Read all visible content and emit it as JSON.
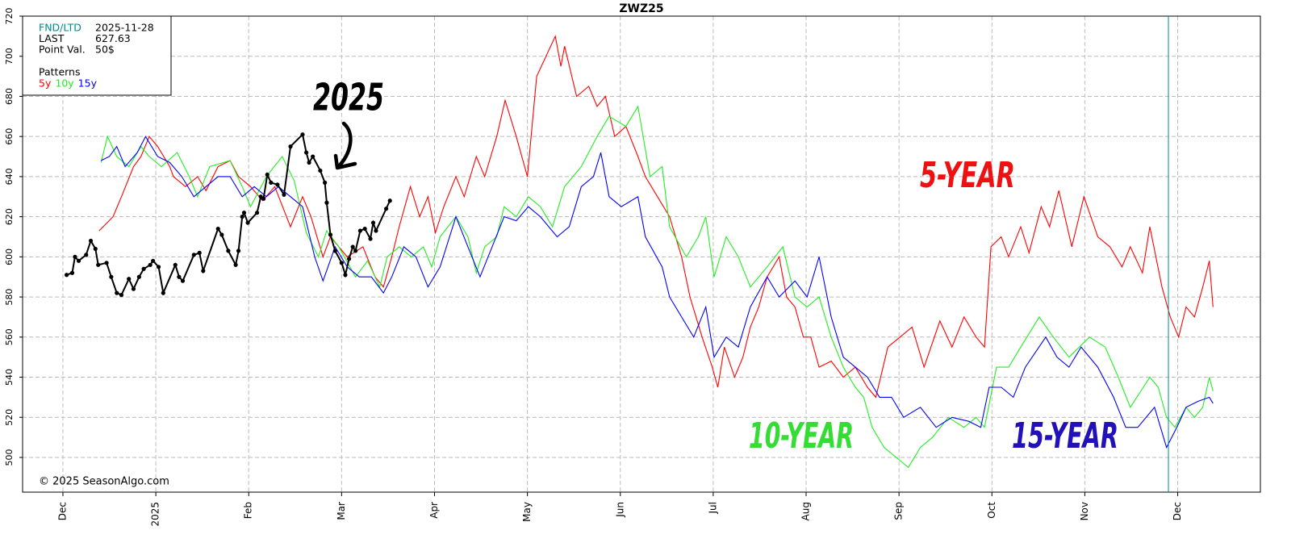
{
  "chart_data": {
    "type": "line",
    "title": "ZWZ25",
    "xlim": [
      -0.434,
      12.89
    ],
    "xticks": [
      {
        "value": 0,
        "label": "Dec"
      },
      {
        "value": 1,
        "label": "2025"
      },
      {
        "value": 2,
        "label": "Feb"
      },
      {
        "value": 3,
        "label": "Mar"
      },
      {
        "value": 4,
        "label": "Apr"
      },
      {
        "value": 5,
        "label": "May"
      },
      {
        "value": 6,
        "label": "Jun"
      },
      {
        "value": 7,
        "label": "Jul"
      },
      {
        "value": 8,
        "label": "Aug"
      },
      {
        "value": 9,
        "label": "Sep"
      },
      {
        "value": 10,
        "label": "Oct"
      },
      {
        "value": 11,
        "label": "Nov"
      },
      {
        "value": 12,
        "label": "Dec"
      }
    ],
    "ylim": [
      482.7,
      720
    ],
    "yticks": [
      500,
      520,
      540,
      560,
      580,
      600,
      620,
      640,
      660,
      680,
      700,
      720
    ],
    "grid": true,
    "fnd_line": {
      "x": 11.9,
      "color": "#008b8b"
    },
    "info": [
      {
        "label": "FND/LTD",
        "value": "2025-11-28",
        "color": "#008b8b"
      },
      {
        "label": "LAST",
        "value": "627.63",
        "color": "#000000"
      },
      {
        "label": "Point Val.",
        "value": "50$",
        "color": "#000000"
      }
    ],
    "patterns_label": "Patterns",
    "copyright": "© 2025 SeasonAlgo.com",
    "annotations": [
      {
        "text": "5-YEAR",
        "color": "#ee1111"
      },
      {
        "text": "10-YEAR",
        "color": "#33dd33"
      },
      {
        "text": "15-YEAR",
        "color": "#2211bb"
      }
    ],
    "series": [
      {
        "name": "5y",
        "color": "#ff0000",
        "legend": true,
        "x": [
          0.39,
          0.54,
          0.63,
          0.76,
          0.84,
          0.93,
          1.02,
          1.15,
          1.19,
          1.32,
          1.45,
          1.54,
          1.67,
          1.8,
          1.89,
          2.02,
          2.15,
          2.28,
          2.45,
          2.58,
          2.67,
          2.8,
          2.88,
          3.06,
          3.23,
          3.36,
          3.45,
          3.54,
          3.62,
          3.74,
          3.84,
          3.93,
          4.01,
          4.1,
          4.23,
          4.32,
          4.45,
          4.54,
          4.67,
          4.76,
          4.88,
          5.0,
          5.1,
          5.3,
          5.36,
          5.4,
          5.53,
          5.66,
          5.75,
          5.84,
          5.94,
          6.06,
          6.19,
          6.27,
          6.4,
          6.53,
          6.66,
          6.75,
          6.88,
          6.99,
          7.05,
          7.12,
          7.23,
          7.32,
          7.4,
          7.49,
          7.58,
          7.71,
          7.79,
          7.88,
          7.97,
          8.05,
          8.14,
          8.27,
          8.4,
          8.53,
          8.66,
          8.75,
          8.88,
          9.01,
          9.14,
          9.27,
          9.44,
          9.57,
          9.7,
          9.83,
          9.92,
          9.99,
          10.1,
          10.18,
          10.31,
          10.4,
          10.53,
          10.62,
          10.72,
          10.86,
          10.99,
          11.14,
          11.27,
          11.4,
          11.49,
          11.62,
          11.7,
          11.83,
          11.92,
          12.01,
          12.09,
          12.18,
          12.27,
          12.34,
          12.38
        ],
        "values": [
          613,
          620,
          630,
          645,
          650,
          660,
          655,
          645,
          640,
          635,
          640,
          633,
          645,
          648,
          640,
          635,
          628,
          635,
          615,
          630,
          620,
          600,
          610,
          600,
          605,
          590,
          585,
          600,
          615,
          635,
          620,
          630,
          612,
          625,
          640,
          630,
          650,
          640,
          660,
          678,
          660,
          640,
          690,
          710,
          695,
          705,
          680,
          685,
          675,
          680,
          660,
          665,
          650,
          640,
          630,
          620,
          600,
          580,
          560,
          545,
          535,
          555,
          540,
          550,
          565,
          575,
          590,
          600,
          580,
          575,
          560,
          560,
          545,
          548,
          540,
          545,
          535,
          530,
          555,
          560,
          565,
          545,
          568,
          555,
          570,
          560,
          555,
          605,
          610,
          600,
          615,
          602,
          625,
          615,
          633,
          605,
          630,
          610,
          605,
          595,
          605,
          592,
          615,
          585,
          570,
          560,
          575,
          570,
          585,
          598,
          575
        ]
      },
      {
        "name": "10y",
        "color": "#22ee22",
        "legend": true,
        "x": [
          0.41,
          0.48,
          0.58,
          0.71,
          0.84,
          0.93,
          1.06,
          1.23,
          1.36,
          1.45,
          1.58,
          1.8,
          1.93,
          2.02,
          2.19,
          2.36,
          2.49,
          2.62,
          2.75,
          2.84,
          2.97,
          3.15,
          3.28,
          3.41,
          3.49,
          3.62,
          3.75,
          3.88,
          3.97,
          4.06,
          4.23,
          4.36,
          4.45,
          4.54,
          4.67,
          4.75,
          4.88,
          5.01,
          5.14,
          5.27,
          5.4,
          5.58,
          5.75,
          5.88,
          6.06,
          6.19,
          6.32,
          6.45,
          6.53,
          6.71,
          6.84,
          6.92,
          7.01,
          7.14,
          7.27,
          7.4,
          7.58,
          7.75,
          7.88,
          8.01,
          8.14,
          8.27,
          8.4,
          8.53,
          8.62,
          8.71,
          8.84,
          8.97,
          9.1,
          9.23,
          9.36,
          9.53,
          9.7,
          9.83,
          9.92,
          10.05,
          10.18,
          10.31,
          10.51,
          10.66,
          10.83,
          11.05,
          11.22,
          11.36,
          11.49,
          11.7,
          11.79,
          11.88,
          11.97,
          12.09,
          12.18,
          12.27,
          12.34,
          12.38
        ],
        "values": [
          647,
          660,
          650,
          645,
          655,
          650,
          645,
          652,
          640,
          630,
          645,
          648,
          635,
          625,
          640,
          650,
          638,
          612,
          600,
          613,
          605,
          590,
          598,
          585,
          600,
          605,
          600,
          605,
          595,
          610,
          620,
          610,
          592,
          605,
          610,
          625,
          620,
          630,
          625,
          615,
          635,
          645,
          660,
          670,
          665,
          675,
          640,
          645,
          615,
          600,
          610,
          620,
          590,
          610,
          600,
          585,
          595,
          605,
          580,
          575,
          580,
          560,
          545,
          535,
          530,
          515,
          505,
          500,
          495,
          505,
          510,
          520,
          515,
          520,
          515,
          545,
          545,
          555,
          570,
          560,
          550,
          560,
          555,
          540,
          525,
          540,
          535,
          520,
          515,
          525,
          520,
          525,
          540,
          533
        ]
      },
      {
        "name": "15y",
        "color": "#0000ff",
        "legend": true,
        "x": [
          0.41,
          0.5,
          0.58,
          0.67,
          0.8,
          0.89,
          1.02,
          1.15,
          1.28,
          1.41,
          1.54,
          1.67,
          1.8,
          1.93,
          2.06,
          2.19,
          2.32,
          2.45,
          2.58,
          2.71,
          2.8,
          2.93,
          3.06,
          3.19,
          3.32,
          3.45,
          3.54,
          3.67,
          3.8,
          3.93,
          4.06,
          4.23,
          4.36,
          4.49,
          4.62,
          4.75,
          4.88,
          5.01,
          5.14,
          5.32,
          5.45,
          5.58,
          5.71,
          5.79,
          5.88,
          6.01,
          6.19,
          6.27,
          6.45,
          6.53,
          6.66,
          6.79,
          6.92,
          7.01,
          7.14,
          7.27,
          7.4,
          7.58,
          7.71,
          7.88,
          8.01,
          8.14,
          8.27,
          8.4,
          8.53,
          8.66,
          8.79,
          8.92,
          9.05,
          9.23,
          9.4,
          9.57,
          9.75,
          9.88,
          9.97,
          10.1,
          10.23,
          10.36,
          10.58,
          10.7,
          10.83,
          10.96,
          11.14,
          11.31,
          11.44,
          11.57,
          11.75,
          11.88,
          11.99,
          12.09,
          12.22,
          12.34,
          12.38
        ],
        "values": [
          648,
          650,
          655,
          645,
          652,
          660,
          650,
          647,
          640,
          630,
          635,
          640,
          640,
          630,
          635,
          630,
          635,
          630,
          625,
          600,
          588,
          605,
          595,
          590,
          590,
          582,
          590,
          605,
          600,
          585,
          595,
          620,
          605,
          590,
          605,
          620,
          618,
          625,
          620,
          610,
          615,
          635,
          640,
          652,
          630,
          625,
          630,
          610,
          595,
          580,
          570,
          560,
          575,
          550,
          560,
          555,
          575,
          590,
          580,
          588,
          580,
          600,
          570,
          550,
          545,
          540,
          530,
          530,
          520,
          525,
          515,
          520,
          518,
          515,
          535,
          535,
          530,
          545,
          560,
          550,
          545,
          555,
          545,
          530,
          515,
          515,
          525,
          505,
          515,
          525,
          528,
          530,
          527
        ]
      },
      {
        "name": "2025",
        "color": "#000000",
        "legend": false,
        "markers": true,
        "x": [
          0.04,
          0.1,
          0.13,
          0.17,
          0.25,
          0.3,
          0.35,
          0.38,
          0.47,
          0.52,
          0.58,
          0.63,
          0.71,
          0.76,
          0.82,
          0.87,
          0.94,
          0.97,
          1.03,
          1.08,
          1.21,
          1.25,
          1.29,
          1.41,
          1.47,
          1.51,
          1.67,
          1.71,
          1.78,
          1.86,
          1.89,
          1.93,
          1.95,
          1.99,
          2.09,
          2.13,
          2.16,
          2.2,
          2.24,
          2.31,
          2.38,
          2.45,
          2.58,
          2.62,
          2.65,
          2.69,
          2.77,
          2.82,
          2.84,
          2.88,
          2.93,
          3.0,
          3.04,
          3.08,
          3.12,
          3.15,
          3.2,
          3.25,
          3.31,
          3.34,
          3.37,
          3.48,
          3.52
        ],
        "values": [
          591,
          592,
          600,
          598,
          601,
          608,
          604,
          596,
          597,
          590,
          582,
          581,
          589,
          584,
          590,
          594,
          596,
          598,
          595,
          582,
          596,
          590,
          588,
          601,
          602,
          593,
          614,
          611,
          603,
          596,
          603,
          620,
          622,
          617,
          622,
          630,
          629,
          641,
          637,
          636,
          631,
          655,
          661,
          652,
          647,
          650,
          643,
          637,
          627,
          611,
          603,
          597,
          591,
          599,
          605,
          603,
          613,
          614,
          609,
          617,
          613,
          624,
          628
        ]
      }
    ]
  }
}
